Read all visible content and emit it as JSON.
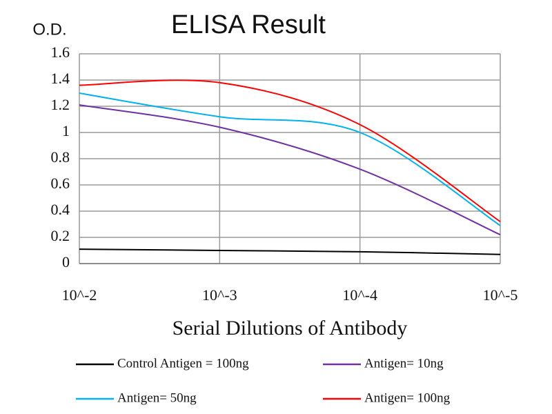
{
  "chart_data": {
    "type": "line",
    "title": "ELISA Result",
    "y_label": "O.D.",
    "x_label": "Serial Dilutions of Antibody",
    "categories": [
      "10^-2",
      "10^-3",
      "10^-4",
      "10^-5"
    ],
    "series": [
      {
        "name": "Control Antigen = 100ng",
        "color": "#000000",
        "values": [
          0.11,
          0.1,
          0.09,
          0.07
        ]
      },
      {
        "name": "Antigen= 10ng",
        "color": "#7030a0",
        "values": [
          1.21,
          1.04,
          0.72,
          0.22
        ]
      },
      {
        "name": "Antigen= 50ng",
        "color": "#00b0f0",
        "values": [
          1.3,
          1.12,
          1.0,
          0.29
        ]
      },
      {
        "name": "Antigen= 100ng",
        "color": "#ff0000",
        "values": [
          1.36,
          1.38,
          1.06,
          0.32
        ]
      }
    ],
    "ylim": [
      0,
      1.6
    ],
    "yticks": [
      0,
      0.2,
      0.4,
      0.6,
      0.8,
      1,
      1.2,
      1.4,
      1.6
    ],
    "grid": true
  }
}
